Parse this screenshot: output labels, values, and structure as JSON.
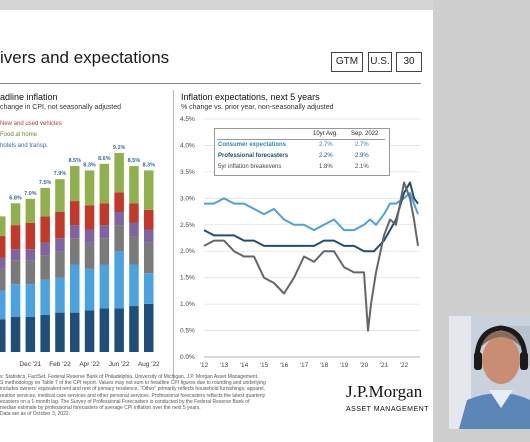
{
  "slide": {
    "title": "ivers and expectations",
    "tags": [
      "GTM",
      "U.S.",
      "30"
    ]
  },
  "left_panel": {
    "title": "adline inflation",
    "subtitle": "change in CPI, not seasonally adjusted",
    "legend": [
      {
        "label": "New and used vehicles",
        "color": "#c0392b"
      },
      {
        "label": "Food at home",
        "color": "#8fb04c"
      },
      {
        "label": "hotels and transp.",
        "color": "#2e6da4"
      }
    ]
  },
  "right_panel": {
    "title": "Inflation expectations, next 5 years",
    "subtitle": "% change vs. prior year, non-seasonally adjusted",
    "table": {
      "headers": [
        "",
        "10yr Avg.",
        "Sep. 2022"
      ],
      "rows": [
        {
          "label": "Consumer expectations",
          "avg": "2.7%",
          "sep": "2.7%",
          "color": "#4aa3df"
        },
        {
          "label": "Professional forecasters",
          "avg": "2.2%",
          "sep": "2.9%",
          "color": "#1f4e79"
        },
        {
          "label": "5yr inflation breakevens",
          "avg": "1.8%",
          "sep": "2.1%",
          "color": "#666666"
        }
      ]
    }
  },
  "chart_data": [
    {
      "type": "bar",
      "title": "adline inflation",
      "x_tick_labels": [
        "Dec '21",
        "Feb '22",
        "Apr '22",
        "Jun '22",
        "Aug '22"
      ],
      "categories": [
        "Oct '21",
        "Nov '21",
        "Dec '21",
        "Jan '22",
        "Feb '22",
        "Mar '22",
        "Apr '22",
        "May '22",
        "Jun '22",
        "Jul '22",
        "Aug '22"
      ],
      "totals": [
        6.2,
        6.8,
        7.0,
        7.5,
        7.9,
        8.5,
        8.3,
        8.6,
        9.1,
        8.5,
        8.3
      ],
      "total_labels": [
        "",
        "6.8%",
        "7.0%",
        "7.5%",
        "7.9%",
        "8.5%",
        "8.3%",
        "8.6%",
        "9.1%",
        "8.5%",
        "8.3%"
      ],
      "series": [
        {
          "name": "",
          "color": "#1f4e79",
          "values": [
            1.5,
            1.6,
            1.6,
            1.7,
            1.8,
            1.8,
            1.9,
            2.0,
            2.0,
            2.1,
            2.2
          ]
        },
        {
          "name": "",
          "color": "#4aa3df",
          "values": [
            1.3,
            1.5,
            1.5,
            1.6,
            1.6,
            2.2,
            1.9,
            2.0,
            2.6,
            1.9,
            1.4
          ]
        },
        {
          "name": "",
          "color": "#7a7a7a",
          "values": [
            1.0,
            1.1,
            1.1,
            1.1,
            1.2,
            1.2,
            1.2,
            1.2,
            1.2,
            1.3,
            1.4
          ]
        },
        {
          "name": "",
          "color": "#8064a2",
          "values": [
            0.5,
            0.5,
            0.5,
            0.6,
            0.6,
            0.6,
            0.6,
            0.6,
            0.6,
            0.6,
            0.6
          ]
        },
        {
          "name": "New and used vehicles",
          "color": "#c0392b",
          "values": [
            1.0,
            1.1,
            1.2,
            1.2,
            1.2,
            1.1,
            1.1,
            1.0,
            0.9,
            0.9,
            0.9
          ]
        },
        {
          "name": "Food at home",
          "color": "#8fb04c",
          "values": [
            0.9,
            1.0,
            1.1,
            1.3,
            1.5,
            1.6,
            1.6,
            1.8,
            1.8,
            1.7,
            1.8
          ]
        }
      ]
    },
    {
      "type": "line",
      "title": "Inflation expectations, next 5 years",
      "xlim": [
        2012,
        2022.8
      ],
      "ylim": [
        0,
        4.5
      ],
      "x_ticks": [
        "'12",
        "'13",
        "'14",
        "'15",
        "'16",
        "'17",
        "'18",
        "'19",
        "'20",
        "'21",
        "'22"
      ],
      "y_ticks": [
        "0.0%",
        "0.5%",
        "1.0%",
        "1.5%",
        "2.0%",
        "2.5%",
        "3.0%",
        "3.5%",
        "4.0%",
        "4.5%"
      ],
      "series": [
        {
          "name": "Consumer expectations",
          "color": "#4aa3df",
          "x": [
            2012.0,
            2012.5,
            2013.0,
            2013.5,
            2014.0,
            2014.5,
            2015.0,
            2015.5,
            2016.0,
            2016.5,
            2017.0,
            2017.5,
            2018.0,
            2018.5,
            2019.0,
            2019.5,
            2020.0,
            2020.3,
            2020.6,
            2021.0,
            2021.3,
            2021.6,
            2022.0,
            2022.3,
            2022.5,
            2022.7
          ],
          "y": [
            2.9,
            2.9,
            3.0,
            2.9,
            2.9,
            2.8,
            2.7,
            2.8,
            2.6,
            2.5,
            2.5,
            2.4,
            2.5,
            2.6,
            2.4,
            2.4,
            2.5,
            2.6,
            2.5,
            2.7,
            2.9,
            2.9,
            3.0,
            3.1,
            2.9,
            2.7
          ]
        },
        {
          "name": "Professional forecasters",
          "color": "#1f4e79",
          "x": [
            2012.0,
            2012.5,
            2013.0,
            2013.5,
            2014.0,
            2014.5,
            2015.0,
            2015.5,
            2016.0,
            2016.5,
            2017.0,
            2017.5,
            2018.0,
            2018.5,
            2019.0,
            2019.5,
            2020.0,
            2020.5,
            2021.0,
            2021.3,
            2021.6,
            2022.0,
            2022.3,
            2022.5,
            2022.7
          ],
          "y": [
            2.4,
            2.3,
            2.3,
            2.3,
            2.2,
            2.2,
            2.1,
            2.1,
            2.1,
            2.1,
            2.1,
            2.1,
            2.2,
            2.2,
            2.1,
            2.1,
            2.0,
            2.0,
            2.2,
            2.4,
            2.6,
            3.1,
            3.3,
            3.0,
            2.9
          ]
        },
        {
          "name": "5yr inflation breakevens",
          "color": "#666666",
          "x": [
            2012.0,
            2012.5,
            2013.0,
            2013.5,
            2014.0,
            2014.5,
            2015.0,
            2015.5,
            2016.0,
            2016.5,
            2017.0,
            2017.5,
            2018.0,
            2018.5,
            2019.0,
            2019.5,
            2020.0,
            2020.2,
            2020.35,
            2020.6,
            2021.0,
            2021.3,
            2021.6,
            2022.0,
            2022.3,
            2022.5,
            2022.7
          ],
          "y": [
            2.1,
            2.2,
            2.2,
            2.0,
            1.9,
            1.9,
            1.5,
            1.4,
            1.2,
            1.5,
            1.9,
            1.8,
            2.0,
            2.0,
            1.7,
            1.6,
            1.6,
            0.5,
            1.0,
            1.6,
            2.3,
            2.6,
            2.5,
            3.3,
            3.0,
            2.6,
            2.1
          ]
        }
      ]
    }
  ],
  "footnote": [
    "s: Statistics, FactSet, Federal Reserve Bank of Philadelphia, University of Michigan, J.P. Morgan Asset Management.",
    "S methodology on Table 7 of the CPI report. Values may not sum to headline CPI figures due to rounding and underlying",
    "includes owners' equivalent rent and rent of primary residence. \"Other\" primarily reflects household furnishings, apparel,",
    "reation services, medical care services and other personal services. Professional forecasters reflects the latest quarterly",
    "ecasters on a 1-month lag. The Survey of Professional Forecasters is conducted by the Federal Reserve Bank of",
    "median estimate by professional forecasters of average CPI inflation over the next 5 years.",
    "Data are as of October 3, 2022."
  ],
  "branding": {
    "logo_text": "J.P.Morgan",
    "logo_sub": "ASSET MANAGEMENT"
  },
  "webcam": {
    "description_icon": "presenter-video-icon"
  }
}
